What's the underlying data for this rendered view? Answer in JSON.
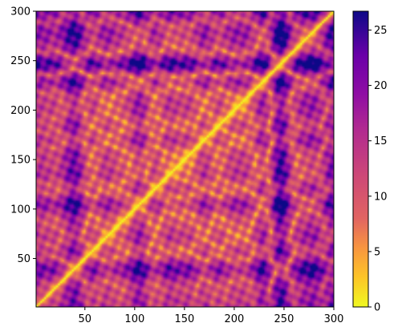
{
  "chart_data": {
    "type": "heatmap",
    "title": "",
    "xlabel": "",
    "ylabel": "",
    "xlim": [
      1,
      300
    ],
    "ylim": [
      1,
      300
    ],
    "x_ticks": [
      50,
      100,
      150,
      200,
      250,
      300
    ],
    "y_ticks": [
      50,
      100,
      150,
      200,
      250,
      300
    ],
    "colormap": "plasma_r",
    "colorbar": {
      "range": [
        0,
        26.7
      ],
      "ticks": [
        0,
        5,
        10,
        15,
        20,
        25
      ]
    },
    "description_values": {
      "diagonal_value": 0,
      "max_value": 26.7
    },
    "colors": {
      "low": "#f0f921",
      "mid": "#e16462",
      "high": "#0d0887"
    }
  }
}
